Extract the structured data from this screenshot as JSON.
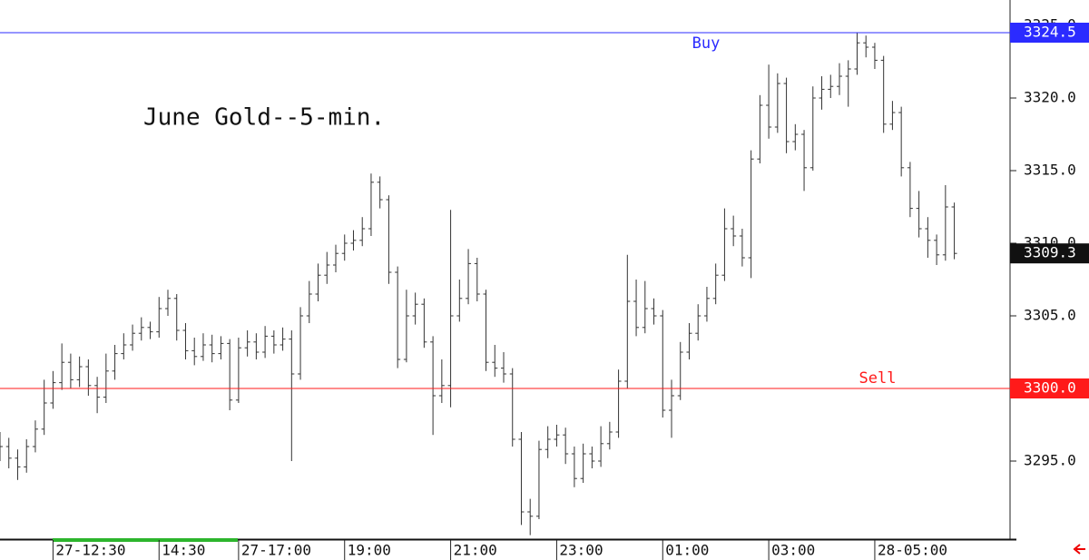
{
  "chart_data": {
    "type": "ohlc",
    "title": "June Gold--5-min.",
    "color": "#333333",
    "ylim": [
      3289.75,
      3326.75
    ],
    "yticks": [
      {
        "value": 3295,
        "label": "3295.0"
      },
      {
        "value": 3300,
        "label": "3300.0"
      },
      {
        "value": 3305,
        "label": "3305.0"
      },
      {
        "value": 3310,
        "label": "3310.0"
      },
      {
        "value": 3315,
        "label": "3315.0"
      },
      {
        "value": 3320,
        "label": "3320.0"
      },
      {
        "value": 3325,
        "label": "3325.0"
      }
    ],
    "xlim": [
      0,
      114
    ],
    "xticks": [
      {
        "value": 6,
        "label": "27-12:30"
      },
      {
        "value": 18,
        "label": "14:30"
      },
      {
        "value": 27,
        "label": "27-17:00"
      },
      {
        "value": 39,
        "label": "19:00"
      },
      {
        "value": 51,
        "label": "21:00"
      },
      {
        "value": 63,
        "label": "23:00"
      },
      {
        "value": 75,
        "label": "01:00"
      },
      {
        "value": 87,
        "label": "03:00"
      },
      {
        "value": 99,
        "label": "28-05:00"
      }
    ],
    "open": [
      3296.5,
      3296.0,
      3295.2,
      3294.6,
      3296.0,
      3297.2,
      3299.0,
      3300.4,
      3301.8,
      3300.6,
      3301.5,
      3300.2,
      3299.4,
      3301.2,
      3302.4,
      3303.0,
      3303.8,
      3304.2,
      3303.9,
      3305.5,
      3306.2,
      3304.0,
      3302.6,
      3302.2,
      3303.0,
      3302.4,
      3303.1,
      3299.2,
      3302.8,
      3303.2,
      3302.5,
      3303.6,
      3303.0,
      3303.4,
      3301.0,
      3305.0,
      3306.5,
      3307.8,
      3308.5,
      3309.3,
      3310.0,
      3310.2,
      3311.0,
      3314.2,
      3313.0,
      3308.0,
      3302.0,
      3305.0,
      3305.8,
      3303.2,
      3299.5,
      3300.2,
      3305.0,
      3306.2,
      3308.6,
      3306.5,
      3301.8,
      3301.4,
      3301.0,
      3296.5,
      3291.5,
      3291.2,
      3295.8,
      3296.5,
      3296.8,
      3295.5,
      3293.8,
      3295.5,
      3295.0,
      3296.2,
      3297.0,
      3300.5,
      3306.0,
      3304.2,
      3305.5,
      3305.0,
      3298.5,
      3299.5,
      3302.5,
      3303.8,
      3305.0,
      3306.2,
      3307.8,
      3311.0,
      3310.5,
      3309.0,
      3315.8,
      3319.5,
      3318.0,
      3321.0,
      3317.0,
      3317.5,
      3315.2,
      3320.0,
      3320.6,
      3320.8,
      3321.5,
      3322.0,
      3323.8,
      3323.5,
      3322.6,
      3318.2,
      3319.0,
      3315.2,
      3312.4,
      3311.0,
      3310.2,
      3309.2,
      3312.5
    ],
    "high": [
      3297.0,
      3296.6,
      3295.8,
      3296.5,
      3297.8,
      3300.6,
      3301.2,
      3303.1,
      3302.4,
      3302.2,
      3302.0,
      3300.8,
      3302.4,
      3303.0,
      3303.8,
      3304.4,
      3304.9,
      3304.6,
      3306.3,
      3306.8,
      3306.5,
      3304.5,
      3303.5,
      3303.8,
      3303.7,
      3303.6,
      3303.4,
      3303.5,
      3304.0,
      3303.8,
      3304.3,
      3304.0,
      3304.2,
      3304.0,
      3305.6,
      3307.4,
      3308.6,
      3309.4,
      3309.9,
      3310.6,
      3310.9,
      3311.8,
      3314.8,
      3314.6,
      3313.3,
      3308.4,
      3306.8,
      3306.6,
      3306.2,
      3303.6,
      3302.0,
      3312.3,
      3307.5,
      3309.6,
      3309.0,
      3306.8,
      3303.0,
      3302.5,
      3301.4,
      3297.0,
      3292.4,
      3296.4,
      3297.4,
      3297.5,
      3297.3,
      3296.0,
      3296.2,
      3296.0,
      3297.4,
      3297.7,
      3301.3,
      3309.2,
      3307.5,
      3307.4,
      3306.2,
      3305.4,
      3300.6,
      3303.2,
      3304.5,
      3305.8,
      3307.0,
      3308.6,
      3312.4,
      3311.9,
      3311.0,
      3316.4,
      3320.2,
      3322.3,
      3321.7,
      3321.4,
      3318.2,
      3317.8,
      3320.8,
      3321.5,
      3321.6,
      3322.4,
      3322.6,
      3324.5,
      3324.3,
      3323.8,
      3322.9,
      3319.8,
      3319.4,
      3315.6,
      3313.6,
      3311.8,
      3310.6,
      3314.0,
      3312.8
    ],
    "low": [
      3295.0,
      3294.5,
      3293.7,
      3294.2,
      3295.6,
      3296.8,
      3298.6,
      3299.9,
      3300.0,
      3300.1,
      3299.5,
      3298.3,
      3299.0,
      3300.6,
      3302.0,
      3302.6,
      3303.3,
      3303.4,
      3303.5,
      3305.0,
      3303.3,
      3302.0,
      3301.6,
      3301.9,
      3301.8,
      3302.0,
      3298.5,
      3299.0,
      3302.2,
      3302.0,
      3302.1,
      3302.4,
      3302.6,
      3295.0,
      3300.6,
      3304.5,
      3306.0,
      3307.2,
      3308.0,
      3308.8,
      3309.5,
      3309.8,
      3310.5,
      3312.4,
      3307.2,
      3301.4,
      3301.8,
      3304.4,
      3302.8,
      3296.8,
      3299.0,
      3298.7,
      3304.6,
      3305.8,
      3306.0,
      3301.2,
      3300.8,
      3300.4,
      3296.0,
      3290.6,
      3289.9,
      3291.0,
      3295.2,
      3296.0,
      3294.8,
      3293.2,
      3293.5,
      3294.5,
      3294.6,
      3295.8,
      3296.6,
      3300.0,
      3303.6,
      3303.8,
      3304.4,
      3298.0,
      3296.6,
      3299.2,
      3302.0,
      3303.3,
      3304.6,
      3305.8,
      3307.4,
      3309.8,
      3308.4,
      3307.6,
      3315.5,
      3317.2,
      3317.6,
      3316.2,
      3316.4,
      3313.6,
      3315.0,
      3319.2,
      3320.0,
      3320.2,
      3319.4,
      3321.6,
      3322.8,
      3322.0,
      3317.6,
      3317.8,
      3314.6,
      3311.8,
      3310.4,
      3309.0,
      3308.5,
      3308.8,
      3308.9
    ],
    "close": [
      3296.0,
      3295.2,
      3294.6,
      3296.0,
      3297.2,
      3299.0,
      3300.4,
      3301.8,
      3300.6,
      3301.5,
      3300.2,
      3299.4,
      3301.2,
      3302.4,
      3303.0,
      3303.8,
      3304.2,
      3303.9,
      3305.5,
      3306.2,
      3304.0,
      3302.6,
      3302.2,
      3303.0,
      3302.4,
      3303.1,
      3299.2,
      3302.8,
      3303.2,
      3302.5,
      3303.6,
      3303.0,
      3303.4,
      3301.0,
      3305.0,
      3306.5,
      3307.8,
      3308.5,
      3309.3,
      3310.0,
      3310.2,
      3311.0,
      3314.2,
      3313.0,
      3308.0,
      3302.0,
      3305.0,
      3305.8,
      3303.2,
      3299.5,
      3300.2,
      3305.0,
      3306.2,
      3308.6,
      3306.5,
      3301.8,
      3301.4,
      3301.0,
      3296.5,
      3291.5,
      3291.2,
      3295.8,
      3296.5,
      3296.8,
      3295.5,
      3293.8,
      3295.5,
      3295.0,
      3296.2,
      3297.0,
      3300.5,
      3306.0,
      3304.2,
      3305.5,
      3305.0,
      3298.5,
      3299.5,
      3302.5,
      3303.8,
      3305.0,
      3306.2,
      3307.8,
      3311.0,
      3310.5,
      3309.0,
      3315.8,
      3319.5,
      3318.0,
      3321.0,
      3317.0,
      3317.5,
      3315.2,
      3320.0,
      3320.6,
      3320.8,
      3321.5,
      3322.0,
      3323.8,
      3323.5,
      3322.6,
      3318.2,
      3319.0,
      3315.2,
      3312.4,
      3311.0,
      3310.2,
      3309.2,
      3312.5,
      3309.3
    ],
    "lines": [
      {
        "name": "Buy",
        "value": 3324.5,
        "label": "3324.5",
        "color": "#2b2bff"
      },
      {
        "name": "Sell",
        "value": 3300.0,
        "label": "3300.0",
        "color": "#ff1a1a"
      }
    ],
    "last_price": {
      "value": 3309.3,
      "label": "3309.3",
      "color": "#111111"
    }
  }
}
